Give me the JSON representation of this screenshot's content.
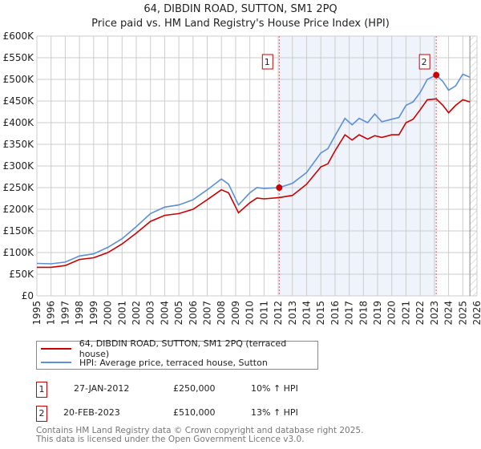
{
  "title": "64, DIBDIN ROAD, SUTTON, SM1 2PQ",
  "subtitle": "Price paid vs. HM Land Registry's House Price Index (HPI)",
  "colors": {
    "property": "#cc0000",
    "hpi": "#5b8fd6",
    "shade": "#eef3fc",
    "marker_line": "#e06060"
  },
  "chart_data": {
    "type": "line",
    "title": "64, DIBDIN ROAD, SUTTON, SM1 2PQ",
    "xlabel": "",
    "ylabel": "",
    "xlim": [
      1995,
      2026
    ],
    "ylim": [
      0,
      600000
    ],
    "x_ticks": [
      "1995",
      "1996",
      "1997",
      "1998",
      "1999",
      "2000",
      "2001",
      "2002",
      "2003",
      "2004",
      "2005",
      "2006",
      "2007",
      "2008",
      "2009",
      "2010",
      "2011",
      "2012",
      "2013",
      "2014",
      "2015",
      "2016",
      "2017",
      "2018",
      "2019",
      "2020",
      "2021",
      "2022",
      "2023",
      "2024",
      "2025",
      "2026"
    ],
    "y_ticks": [
      {
        "v": 0,
        "label": "£0"
      },
      {
        "v": 50000,
        "label": "£50K"
      },
      {
        "v": 100000,
        "label": "£100K"
      },
      {
        "v": 150000,
        "label": "£150K"
      },
      {
        "v": 200000,
        "label": "£200K"
      },
      {
        "v": 250000,
        "label": "£250K"
      },
      {
        "v": 300000,
        "label": "£300K"
      },
      {
        "v": 350000,
        "label": "£350K"
      },
      {
        "v": 400000,
        "label": "£400K"
      },
      {
        "v": 450000,
        "label": "£450K"
      },
      {
        "v": 500000,
        "label": "£500K"
      },
      {
        "v": 550000,
        "label": "£550K"
      },
      {
        "v": 600000,
        "label": "£600K"
      }
    ],
    "grid": true,
    "x": [
      1995,
      1996,
      1997,
      1998,
      1999,
      2000,
      2001,
      2002,
      2003,
      2004,
      2005,
      2006,
      2007,
      2008,
      2008.5,
      2009.2,
      2010,
      2010.5,
      2011,
      2012.07,
      2013,
      2014,
      2015,
      2015.5,
      2016,
      2016.7,
      2017.2,
      2017.7,
      2018.3,
      2018.8,
      2019.3,
      2020,
      2020.5,
      2021,
      2021.5,
      2022,
      2022.5,
      2023.13,
      2023.6,
      2024,
      2024.5,
      2025,
      2025.5
    ],
    "series": [
      {
        "name": "64, DIBDIN ROAD, SUTTON, SM1 2PQ (terraced house)",
        "values": [
          75,
          74,
          78,
          92,
          97,
          112,
          132,
          160,
          190,
          205,
          210,
          222,
          245,
          270,
          258,
          210,
          238,
          250,
          248,
          250,
          260,
          285,
          330,
          340,
          370,
          410,
          395,
          410,
          400,
          420,
          402,
          408,
          412,
          440,
          448,
          470,
          500,
          510,
          495,
          475,
          485,
          512,
          505
        ]
      },
      {
        "name": "HPI: Average price, terraced house, Sutton",
        "values": [
          66,
          66,
          70,
          84,
          88,
          100,
          120,
          145,
          172,
          186,
          190,
          200,
          222,
          245,
          238,
          192,
          215,
          226,
          224,
          227,
          232,
          258,
          298,
          305,
          335,
          372,
          360,
          372,
          362,
          370,
          366,
          372,
          372,
          400,
          408,
          430,
          453,
          455,
          440,
          423,
          440,
          453,
          448
        ]
      }
    ],
    "value_units": "£K",
    "shaded_range": [
      2012.07,
      2023.13
    ],
    "forecast_hatch_from": 2025.5,
    "annotations": [
      {
        "label": "1",
        "x": 2012.07,
        "y": 250000
      },
      {
        "label": "2",
        "x": 2023.13,
        "y": 510000
      }
    ],
    "legend_placement": "below"
  },
  "legend": {
    "property": "64, DIBDIN ROAD, SUTTON, SM1 2PQ (terraced house)",
    "hpi": "HPI: Average price, terraced house, Sutton"
  },
  "transactions": [
    {
      "num": "1",
      "date": "27-JAN-2012",
      "price": "£250,000",
      "hpi": "10% ↑ HPI"
    },
    {
      "num": "2",
      "date": "20-FEB-2023",
      "price": "£510,000",
      "hpi": "13% ↑ HPI"
    }
  ],
  "footer": {
    "line1": "Contains HM Land Registry data © Crown copyright and database right 2025.",
    "line2": "This data is licensed under the Open Government Licence v3.0."
  }
}
